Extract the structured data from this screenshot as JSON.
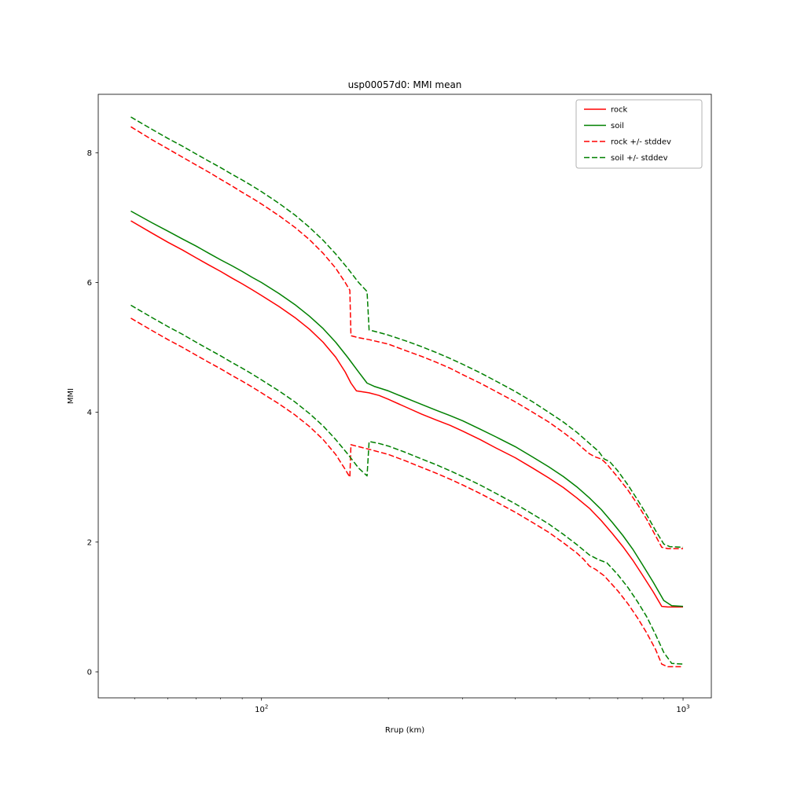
{
  "window": {
    "title": "usp00057d0: MMI mean"
  },
  "chart_data": {
    "type": "line",
    "title": "usp00057d0: MMI mean",
    "xlabel": "Rrup (km)",
    "ylabel": "MMI",
    "x_scale": "log",
    "xlim": [
      41,
      1167
    ],
    "ylim": [
      -0.4,
      8.9
    ],
    "y_ticks": [
      0,
      2,
      4,
      6,
      8
    ],
    "x_major_ticks": [
      {
        "value": 100,
        "base": "10",
        "exp": "2"
      },
      {
        "value": 1000,
        "base": "10",
        "exp": "3"
      }
    ],
    "x_minor_ticks": [
      50,
      60,
      70,
      80,
      90,
      200,
      300,
      400,
      500,
      600,
      700,
      800,
      900
    ],
    "grid": false,
    "legend_position": "upper right",
    "legend": [
      {
        "label": "rock",
        "color": "#ff0000",
        "style": "solid"
      },
      {
        "label": "soil",
        "color": "#008000",
        "style": "solid"
      },
      {
        "label": "rock +/- stddev",
        "color": "#ff0000",
        "style": "dashed"
      },
      {
        "label": "soil +/- stddev",
        "color": "#008000",
        "style": "dashed"
      }
    ],
    "series": [
      {
        "id": "rock-mean",
        "name": "rock",
        "color": "#ff0000",
        "style": "solid",
        "points": [
          [
            49,
            6.95
          ],
          [
            55,
            6.76
          ],
          [
            60,
            6.62
          ],
          [
            65,
            6.5
          ],
          [
            70,
            6.38
          ],
          [
            75,
            6.27
          ],
          [
            80,
            6.17
          ],
          [
            85,
            6.07
          ],
          [
            90,
            5.98
          ],
          [
            95,
            5.89
          ],
          [
            100,
            5.8
          ],
          [
            110,
            5.63
          ],
          [
            120,
            5.46
          ],
          [
            130,
            5.28
          ],
          [
            140,
            5.08
          ],
          [
            150,
            4.85
          ],
          [
            158,
            4.62
          ],
          [
            163,
            4.45
          ],
          [
            168,
            4.33
          ],
          [
            180,
            4.3
          ],
          [
            190,
            4.26
          ],
          [
            200,
            4.2
          ],
          [
            220,
            4.08
          ],
          [
            240,
            3.97
          ],
          [
            260,
            3.88
          ],
          [
            280,
            3.8
          ],
          [
            300,
            3.71
          ],
          [
            330,
            3.58
          ],
          [
            360,
            3.45
          ],
          [
            400,
            3.3
          ],
          [
            440,
            3.14
          ],
          [
            480,
            2.99
          ],
          [
            520,
            2.84
          ],
          [
            560,
            2.68
          ],
          [
            600,
            2.52
          ],
          [
            640,
            2.33
          ],
          [
            680,
            2.13
          ],
          [
            720,
            1.93
          ],
          [
            760,
            1.72
          ],
          [
            800,
            1.5
          ],
          [
            850,
            1.23
          ],
          [
            890,
            1.01
          ],
          [
            920,
            1.0
          ],
          [
            1000,
            1.0
          ]
        ]
      },
      {
        "id": "soil-mean",
        "name": "soil",
        "color": "#008000",
        "style": "solid",
        "points": [
          [
            49,
            7.1
          ],
          [
            55,
            6.92
          ],
          [
            60,
            6.79
          ],
          [
            65,
            6.67
          ],
          [
            70,
            6.56
          ],
          [
            75,
            6.45
          ],
          [
            80,
            6.35
          ],
          [
            85,
            6.26
          ],
          [
            90,
            6.17
          ],
          [
            95,
            6.08
          ],
          [
            100,
            6.0
          ],
          [
            110,
            5.83
          ],
          [
            120,
            5.66
          ],
          [
            130,
            5.48
          ],
          [
            140,
            5.29
          ],
          [
            150,
            5.08
          ],
          [
            160,
            4.85
          ],
          [
            170,
            4.62
          ],
          [
            178,
            4.45
          ],
          [
            185,
            4.4
          ],
          [
            200,
            4.33
          ],
          [
            220,
            4.22
          ],
          [
            240,
            4.12
          ],
          [
            260,
            4.03
          ],
          [
            280,
            3.95
          ],
          [
            300,
            3.87
          ],
          [
            330,
            3.74
          ],
          [
            360,
            3.62
          ],
          [
            400,
            3.47
          ],
          [
            440,
            3.31
          ],
          [
            480,
            3.16
          ],
          [
            520,
            3.01
          ],
          [
            560,
            2.85
          ],
          [
            600,
            2.68
          ],
          [
            640,
            2.5
          ],
          [
            680,
            2.3
          ],
          [
            720,
            2.1
          ],
          [
            760,
            1.89
          ],
          [
            800,
            1.66
          ],
          [
            850,
            1.38
          ],
          [
            900,
            1.1
          ],
          [
            940,
            1.02
          ],
          [
            1000,
            1.01
          ]
        ]
      },
      {
        "id": "rock-upper-stddev",
        "name": "rock +/- stddev",
        "color": "#ff0000",
        "style": "dashed",
        "points": [
          [
            49,
            8.4
          ],
          [
            55,
            8.2
          ],
          [
            60,
            8.06
          ],
          [
            65,
            7.93
          ],
          [
            70,
            7.81
          ],
          [
            75,
            7.7
          ],
          [
            80,
            7.59
          ],
          [
            85,
            7.49
          ],
          [
            90,
            7.39
          ],
          [
            95,
            7.3
          ],
          [
            100,
            7.21
          ],
          [
            110,
            7.03
          ],
          [
            120,
            6.85
          ],
          [
            130,
            6.66
          ],
          [
            140,
            6.45
          ],
          [
            150,
            6.22
          ],
          [
            158,
            6.0
          ],
          [
            162,
            5.88
          ],
          [
            163,
            5.18
          ],
          [
            170,
            5.15
          ],
          [
            180,
            5.12
          ],
          [
            200,
            5.05
          ],
          [
            220,
            4.95
          ],
          [
            240,
            4.86
          ],
          [
            260,
            4.77
          ],
          [
            280,
            4.68
          ],
          [
            300,
            4.58
          ],
          [
            330,
            4.45
          ],
          [
            360,
            4.32
          ],
          [
            400,
            4.16
          ],
          [
            440,
            4.0
          ],
          [
            480,
            3.85
          ],
          [
            520,
            3.69
          ],
          [
            560,
            3.53
          ],
          [
            580,
            3.44
          ],
          [
            600,
            3.36
          ],
          [
            620,
            3.31
          ],
          [
            640,
            3.28
          ],
          [
            660,
            3.2
          ],
          [
            700,
            3.0
          ],
          [
            740,
            2.8
          ],
          [
            780,
            2.58
          ],
          [
            820,
            2.35
          ],
          [
            860,
            2.1
          ],
          [
            890,
            1.92
          ],
          [
            920,
            1.9
          ],
          [
            1000,
            1.9
          ]
        ]
      },
      {
        "id": "rock-lower-stddev",
        "name": "rock +/- stddev",
        "color": "#ff0000",
        "style": "dashed",
        "points": [
          [
            49,
            5.45
          ],
          [
            55,
            5.26
          ],
          [
            60,
            5.12
          ],
          [
            65,
            5.0
          ],
          [
            70,
            4.88
          ],
          [
            75,
            4.77
          ],
          [
            80,
            4.67
          ],
          [
            85,
            4.57
          ],
          [
            90,
            4.48
          ],
          [
            95,
            4.39
          ],
          [
            100,
            4.3
          ],
          [
            110,
            4.13
          ],
          [
            120,
            3.96
          ],
          [
            130,
            3.78
          ],
          [
            140,
            3.58
          ],
          [
            150,
            3.35
          ],
          [
            158,
            3.12
          ],
          [
            162,
            3.0
          ],
          [
            163,
            3.5
          ],
          [
            170,
            3.47
          ],
          [
            180,
            3.43
          ],
          [
            200,
            3.35
          ],
          [
            220,
            3.25
          ],
          [
            240,
            3.15
          ],
          [
            260,
            3.06
          ],
          [
            280,
            2.97
          ],
          [
            300,
            2.88
          ],
          [
            330,
            2.75
          ],
          [
            360,
            2.62
          ],
          [
            400,
            2.46
          ],
          [
            440,
            2.3
          ],
          [
            480,
            2.15
          ],
          [
            520,
            1.99
          ],
          [
            560,
            1.83
          ],
          [
            580,
            1.74
          ],
          [
            600,
            1.63
          ],
          [
            620,
            1.58
          ],
          [
            650,
            1.48
          ],
          [
            700,
            1.25
          ],
          [
            740,
            1.05
          ],
          [
            780,
            0.83
          ],
          [
            820,
            0.6
          ],
          [
            860,
            0.35
          ],
          [
            890,
            0.12
          ],
          [
            920,
            0.08
          ],
          [
            1000,
            0.08
          ]
        ]
      },
      {
        "id": "soil-upper-stddev",
        "name": "soil +/- stddev",
        "color": "#008000",
        "style": "dashed",
        "points": [
          [
            49,
            8.55
          ],
          [
            55,
            8.36
          ],
          [
            60,
            8.22
          ],
          [
            65,
            8.1
          ],
          [
            70,
            7.98
          ],
          [
            75,
            7.87
          ],
          [
            80,
            7.77
          ],
          [
            85,
            7.67
          ],
          [
            90,
            7.58
          ],
          [
            95,
            7.49
          ],
          [
            100,
            7.4
          ],
          [
            110,
            7.22
          ],
          [
            120,
            7.04
          ],
          [
            130,
            6.85
          ],
          [
            140,
            6.65
          ],
          [
            150,
            6.44
          ],
          [
            160,
            6.22
          ],
          [
            170,
            6.0
          ],
          [
            178,
            5.86
          ],
          [
            180,
            5.27
          ],
          [
            190,
            5.23
          ],
          [
            200,
            5.19
          ],
          [
            220,
            5.1
          ],
          [
            240,
            5.01
          ],
          [
            260,
            4.92
          ],
          [
            280,
            4.83
          ],
          [
            300,
            4.74
          ],
          [
            330,
            4.61
          ],
          [
            360,
            4.48
          ],
          [
            400,
            4.32
          ],
          [
            440,
            4.16
          ],
          [
            480,
            4.0
          ],
          [
            520,
            3.85
          ],
          [
            560,
            3.69
          ],
          [
            600,
            3.52
          ],
          [
            630,
            3.4
          ],
          [
            650,
            3.28
          ],
          [
            670,
            3.24
          ],
          [
            700,
            3.1
          ],
          [
            740,
            2.88
          ],
          [
            780,
            2.65
          ],
          [
            820,
            2.42
          ],
          [
            860,
            2.18
          ],
          [
            900,
            1.97
          ],
          [
            930,
            1.93
          ],
          [
            1000,
            1.92
          ]
        ]
      },
      {
        "id": "soil-lower-stddev",
        "name": "soil +/- stddev",
        "color": "#008000",
        "style": "dashed",
        "points": [
          [
            49,
            5.65
          ],
          [
            55,
            5.46
          ],
          [
            60,
            5.32
          ],
          [
            65,
            5.2
          ],
          [
            70,
            5.08
          ],
          [
            75,
            4.97
          ],
          [
            80,
            4.87
          ],
          [
            85,
            4.77
          ],
          [
            90,
            4.68
          ],
          [
            95,
            4.59
          ],
          [
            100,
            4.5
          ],
          [
            110,
            4.33
          ],
          [
            120,
            4.16
          ],
          [
            130,
            3.98
          ],
          [
            140,
            3.79
          ],
          [
            150,
            3.58
          ],
          [
            160,
            3.36
          ],
          [
            170,
            3.14
          ],
          [
            178,
            3.02
          ],
          [
            180,
            3.55
          ],
          [
            190,
            3.52
          ],
          [
            200,
            3.48
          ],
          [
            220,
            3.38
          ],
          [
            240,
            3.28
          ],
          [
            260,
            3.19
          ],
          [
            280,
            3.1
          ],
          [
            300,
            3.01
          ],
          [
            330,
            2.88
          ],
          [
            360,
            2.75
          ],
          [
            400,
            2.59
          ],
          [
            440,
            2.43
          ],
          [
            480,
            2.28
          ],
          [
            520,
            2.12
          ],
          [
            560,
            1.96
          ],
          [
            600,
            1.8
          ],
          [
            630,
            1.73
          ],
          [
            660,
            1.68
          ],
          [
            700,
            1.5
          ],
          [
            740,
            1.3
          ],
          [
            780,
            1.08
          ],
          [
            820,
            0.85
          ],
          [
            860,
            0.58
          ],
          [
            900,
            0.3
          ],
          [
            940,
            0.13
          ],
          [
            1000,
            0.12
          ]
        ]
      }
    ]
  }
}
